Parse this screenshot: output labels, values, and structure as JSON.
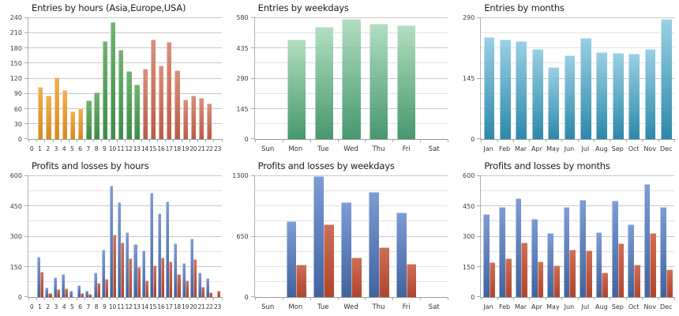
{
  "page": {
    "background": "#ffffff"
  },
  "chart_data": [
    {
      "id": "entries-by-hours",
      "type": "bar",
      "title": "Entries by hours (Asia,Europe,USA)",
      "categories": [
        "0",
        "1",
        "2",
        "3",
        "4",
        "5",
        "6",
        "7",
        "8",
        "9",
        "10",
        "11",
        "12",
        "13",
        "14",
        "15",
        "16",
        "17",
        "18",
        "19",
        "20",
        "21",
        "22",
        "23"
      ],
      "xlabel": "",
      "ylabel": "",
      "ylim": [
        0,
        240
      ],
      "yticks": [
        0,
        30,
        60,
        90,
        120,
        150,
        180,
        210,
        240
      ],
      "grid_divisions": 8,
      "bar_width_pct": 62,
      "legend_position": "none",
      "series": [
        {
          "name": "entries",
          "values": [
            0,
            103,
            87,
            123,
            98,
            55,
            61,
            77,
            93,
            195,
            232,
            177,
            135,
            108,
            140,
            198,
            146,
            193,
            136,
            79,
            86,
            82,
            70,
            0
          ]
        }
      ],
      "color_segments": [
        {
          "name": "asia",
          "start": 1,
          "end": 6,
          "color": {
            "top": "#F0B152",
            "bottom": "#D8881E"
          }
        },
        {
          "name": "europe",
          "start": 7,
          "end": 13,
          "color": {
            "top": "#72B471",
            "bottom": "#3C8D44"
          }
        },
        {
          "name": "usa",
          "start": 14,
          "end": 22,
          "color": {
            "top": "#D8917A",
            "bottom": "#BA5C47"
          }
        }
      ]
    },
    {
      "id": "entries-by-weekdays",
      "type": "bar",
      "title": "Entries by weekdays",
      "categories": [
        "Sun",
        "Mon",
        "Tue",
        "Wed",
        "Thu",
        "Fri",
        "Sat"
      ],
      "xlabel": "",
      "ylabel": "",
      "ylim": [
        0,
        580
      ],
      "yticks": [
        0,
        145,
        290,
        435,
        580
      ],
      "grid_divisions": 8,
      "bar_width_pct": 66,
      "legend_position": "none",
      "series": [
        {
          "name": "entries",
          "values": [
            0,
            476,
            537,
            575,
            554,
            545,
            0
          ],
          "color": {
            "top": "#A9DBB9",
            "bottom": "#2E8A5A",
            "opacity": 0.88
          }
        }
      ]
    },
    {
      "id": "entries-by-months",
      "type": "bar",
      "title": "Entries by months",
      "categories": [
        "Jan",
        "Feb",
        "Mar",
        "Apr",
        "May",
        "Jun",
        "Jul",
        "Aug",
        "Sep",
        "Oct",
        "Nov",
        "Dec"
      ],
      "xlabel": "",
      "ylabel": "",
      "ylim": [
        0,
        290
      ],
      "yticks": [
        0,
        145,
        290
      ],
      "grid_divisions": 8,
      "bar_width_pct": 68,
      "legend_position": "none",
      "series": [
        {
          "name": "entries",
          "values": [
            245,
            238,
            236,
            217,
            173,
            201,
            243,
            209,
            206,
            205,
            216,
            288
          ],
          "color": {
            "top": "#90CCE1",
            "bottom": "#177CA3",
            "opacity": 0.9
          }
        }
      ]
    },
    {
      "id": "profits-and-losses-by-hours",
      "type": "bar",
      "title": "Profits and losses by hours",
      "categories": [
        "0",
        "1",
        "2",
        "3",
        "4",
        "5",
        "6",
        "7",
        "8",
        "9",
        "10",
        "11",
        "12",
        "13",
        "14",
        "15",
        "16",
        "17",
        "18",
        "19",
        "20",
        "21",
        "22",
        "23"
      ],
      "xlabel": "",
      "ylabel": "",
      "ylim": [
        0,
        600
      ],
      "yticks": [
        0,
        150,
        300,
        450,
        600
      ],
      "grid_divisions": 8,
      "bar_width_pct": 40,
      "legend_position": "none",
      "series": [
        {
          "name": "profits",
          "values": [
            0,
            200,
            47,
            100,
            115,
            30,
            57,
            33,
            122,
            234,
            552,
            472,
            321,
            262,
            232,
            516,
            415,
            473,
            266,
            170,
            292,
            122,
            96,
            0
          ],
          "color": {
            "top": "#7E9CD6",
            "bottom": "#40639E"
          }
        },
        {
          "name": "losses",
          "values": [
            0,
            124,
            18,
            38,
            45,
            2,
            18,
            14,
            70,
            90,
            310,
            272,
            192,
            150,
            82,
            157,
            198,
            178,
            112,
            84,
            187,
            51,
            23,
            33
          ],
          "color": {
            "top": "#CE6F55",
            "bottom": "#AF4430"
          }
        }
      ]
    },
    {
      "id": "profits-and-losses-by-weekdays",
      "type": "bar",
      "title": "Profits and losses by weekdays",
      "categories": [
        "Sun",
        "Mon",
        "Tue",
        "Wed",
        "Thu",
        "Fri",
        "Sat"
      ],
      "xlabel": "",
      "ylabel": "",
      "ylim": [
        0,
        1300
      ],
      "yticks": [
        0,
        650,
        1300
      ],
      "grid_divisions": 8,
      "bar_width_pct": 36,
      "legend_position": "none",
      "series": [
        {
          "name": "profits",
          "values": [
            0,
            819,
            1300,
            1022,
            1131,
            910,
            0
          ],
          "color": {
            "top": "#7E9CD6",
            "bottom": "#40639E"
          }
        },
        {
          "name": "losses",
          "values": [
            0,
            346,
            778,
            421,
            533,
            354,
            0
          ],
          "color": {
            "top": "#CE6F55",
            "bottom": "#AF4430"
          }
        }
      ]
    },
    {
      "id": "profits-and-losses-by-months",
      "type": "bar",
      "title": "Profits and losses by months",
      "categories": [
        "Jan",
        "Feb",
        "Mar",
        "Apr",
        "May",
        "Jun",
        "Jul",
        "Aug",
        "Sep",
        "Oct",
        "Nov",
        "Dec"
      ],
      "xlabel": "",
      "ylabel": "",
      "ylim": [
        0,
        600
      ],
      "yticks": [
        0,
        150,
        300,
        450,
        600
      ],
      "grid_divisions": 8,
      "bar_width_pct": 38,
      "legend_position": "none",
      "series": [
        {
          "name": "profits",
          "values": [
            412,
            448,
            491,
            390,
            319,
            448,
            482,
            323,
            480,
            359,
            562,
            448
          ],
          "color": {
            "top": "#7E9CD6",
            "bottom": "#40639E"
          }
        },
        {
          "name": "losses",
          "values": [
            172,
            192,
            271,
            175,
            157,
            235,
            233,
            122,
            268,
            161,
            319,
            139
          ],
          "color": {
            "top": "#CE6F55",
            "bottom": "#AF4430"
          }
        }
      ]
    }
  ]
}
